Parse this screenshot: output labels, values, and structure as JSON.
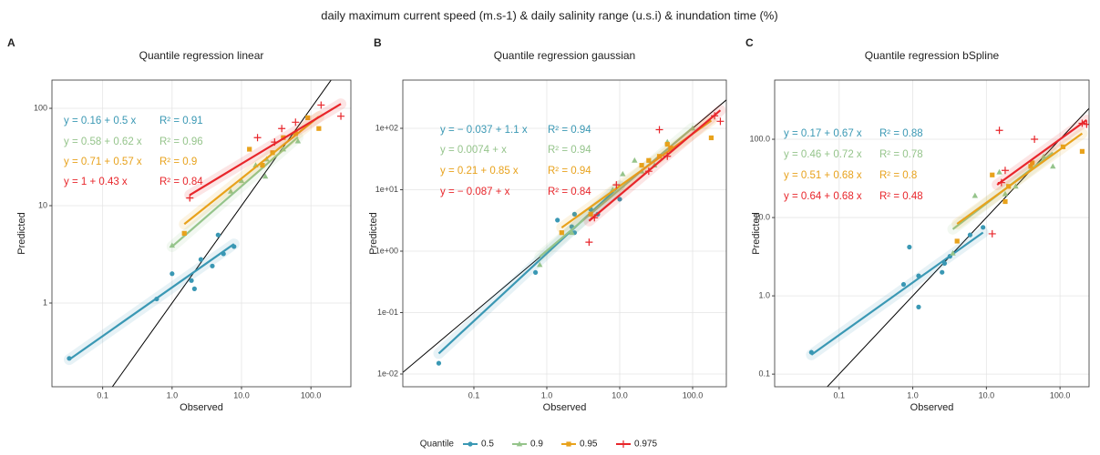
{
  "title": "daily maximum current speed (m.s-1) & daily salinity range (u.s.i) & inundation time (%)",
  "legend": {
    "title": "Quantile",
    "items": [
      {
        "name": "0.5",
        "color": "#3a98b4",
        "marker": "circle"
      },
      {
        "name": "0.9",
        "color": "#95c48b",
        "marker": "triangle"
      },
      {
        "name": "0.95",
        "color": "#e8a21c",
        "marker": "square"
      },
      {
        "name": "0.975",
        "color": "#e8262b",
        "marker": "plus"
      }
    ]
  },
  "chart_data": [
    {
      "type": "scatter",
      "panel": "A",
      "title": "Quantile regression linear",
      "xlabel": "Observed",
      "ylabel": "Predicted",
      "xscale": "log",
      "yscale": "log",
      "grid": true,
      "identity_line": true,
      "xlim": [
        0.0186,
        376
      ],
      "ylim": [
        0.138,
        195
      ],
      "xticks": [
        0.1,
        {
          "value": 1,
          "label": "1.0"
        },
        {
          "value": 10,
          "label": "10.0"
        },
        {
          "value": 100,
          "label": "100.0"
        }
      ],
      "yticks": [
        1,
        10,
        100
      ],
      "series": [
        {
          "color": "#3a98b4",
          "marker": "circle",
          "x": [
            0.033,
            0.6,
            1.0,
            1.9,
            2.1,
            2.6,
            3.8,
            4.6,
            5.5,
            7.8
          ],
          "y": [
            0.27,
            1.1,
            2.0,
            1.7,
            1.4,
            2.8,
            2.4,
            5.0,
            3.2,
            3.8
          ],
          "equation": "y = 0.16 + 0.5 x",
          "r2_label": "R² = 0.91",
          "intercept": 0.16,
          "slope": 0.5,
          "fit_x": [
            0.033,
            7.8
          ]
        },
        {
          "color": "#95c48b",
          "marker": "triangle",
          "x": [
            1.0,
            7,
            10,
            16,
            22,
            23,
            40,
            65
          ],
          "y": [
            3.9,
            14,
            18,
            26,
            20,
            30,
            38,
            46
          ],
          "equation": "y = 0.58 + 0.62 x",
          "r2_label": "R² = 0.96",
          "intercept": 0.58,
          "slope": 0.62,
          "fit_x": [
            1.0,
            65
          ]
        },
        {
          "color": "#e8a21c",
          "marker": "square",
          "x": [
            1.5,
            13,
            20,
            28,
            40,
            60,
            90,
            130
          ],
          "y": [
            5.2,
            38,
            26,
            35,
            50,
            55,
            80,
            62
          ],
          "equation": "y = 0.71 + 0.57 x",
          "r2_label": "R² = 0.9",
          "intercept": 0.71,
          "slope": 0.57,
          "fit_x": [
            1.5,
            130
          ]
        },
        {
          "color": "#e8262b",
          "marker": "plus",
          "x": [
            1.8,
            17,
            30,
            38,
            60,
            140,
            270
          ],
          "y": [
            12,
            50,
            45,
            62,
            72,
            108,
            83
          ],
          "equation": "y = 1 + 0.43 x",
          "r2_label": "R² = 0.84",
          "intercept": 1,
          "slope": 0.43,
          "fit_x": [
            1.8,
            270
          ]
        }
      ]
    },
    {
      "type": "scatter",
      "panel": "B",
      "title": "Quantile regression gaussian",
      "xlabel": "Observed",
      "ylabel": "Predicted",
      "xscale": "log",
      "yscale": "log",
      "grid": true,
      "identity_line": true,
      "xlim": [
        0.0106,
        290
      ],
      "ylim": [
        0.0062,
        610
      ],
      "xticks": [
        0.1,
        {
          "value": 1,
          "label": "1.0"
        },
        {
          "value": 10,
          "label": "10.0"
        },
        {
          "value": 100,
          "label": "100.0"
        }
      ],
      "yticks": [
        {
          "value": 0.01,
          "label": "1e-02"
        },
        {
          "value": 0.1,
          "label": "1e-01"
        },
        {
          "value": 1,
          "label": "1e+00"
        },
        {
          "value": 10,
          "label": "1e+01"
        },
        {
          "value": 100,
          "label": "1e+02"
        }
      ],
      "series": [
        {
          "color": "#3a98b4",
          "marker": "circle",
          "x": [
            0.033,
            0.7,
            1.4,
            2.2,
            2.4,
            2.4,
            4,
            5,
            10
          ],
          "y": [
            0.015,
            0.45,
            3.2,
            2.5,
            4.0,
            2.0,
            4.8,
            4,
            7
          ],
          "equation": "y = − 0.037 + 1.1 x",
          "r2_label": "R² = 0.94",
          "intercept": -0.037,
          "slope": 1.1,
          "fit_x": [
            0.033,
            10
          ]
        },
        {
          "color": "#95c48b",
          "marker": "triangle",
          "x": [
            0.8,
            2.2,
            8,
            11,
            16,
            20,
            30,
            45,
            100
          ],
          "y": [
            0.6,
            2.0,
            10,
            18,
            30,
            20,
            25,
            60,
            100
          ],
          "equation": "y = 0.0074 + x",
          "r2_label": "R² = 0.94",
          "intercept": 0.0074,
          "slope": 1,
          "fit_x": [
            0.8,
            100
          ]
        },
        {
          "color": "#e8a21c",
          "marker": "square",
          "x": [
            1.6,
            4,
            20,
            25,
            35,
            45,
            50,
            180
          ],
          "y": [
            2,
            4,
            25,
            30,
            35,
            55,
            48,
            70
          ],
          "equation": "y = 0.21 + 0.85 x",
          "r2_label": "R² = 0.94",
          "intercept": 0.21,
          "slope": 0.85,
          "fit_x": [
            1.6,
            180
          ]
        },
        {
          "color": "#e8262b",
          "marker": "plus",
          "x": [
            3.8,
            4.5,
            9,
            25,
            35,
            45,
            200,
            240
          ],
          "y": [
            1.4,
            3.5,
            12,
            20,
            95,
            35,
            160,
            130
          ],
          "equation": "y = − 0.087 + x",
          "r2_label": "R² = 0.84",
          "intercept": -0.087,
          "slope": 1,
          "fit_x": [
            3.8,
            240
          ]
        }
      ]
    },
    {
      "type": "scatter",
      "panel": "C",
      "title": "Quantile regression bSpline",
      "xlabel": "Observed",
      "ylabel": "Predicted",
      "xscale": "log",
      "yscale": "log",
      "grid": true,
      "identity_line": true,
      "xlim": [
        0.0133,
        248
      ],
      "ylim": [
        0.069,
        570
      ],
      "xticks": [
        0.1,
        {
          "value": 1,
          "label": "1.0"
        },
        {
          "value": 10,
          "label": "10.0"
        },
        {
          "value": 100,
          "label": "100.0"
        }
      ],
      "yticks": [
        0.1,
        {
          "value": 1,
          "label": "1.0"
        },
        {
          "value": 10,
          "label": "10.0"
        },
        {
          "value": 100,
          "label": "100.0"
        }
      ],
      "series": [
        {
          "color": "#3a98b4",
          "marker": "circle",
          "x": [
            0.042,
            0.75,
            0.9,
            1.2,
            1.2,
            2.5,
            2.7,
            3.2,
            6,
            9
          ],
          "y": [
            0.19,
            1.4,
            4.2,
            0.72,
            1.8,
            2.0,
            2.6,
            3.2,
            6,
            7.5
          ],
          "equation": "y = 0.17 + 0.67 x",
          "r2_label": "R² = 0.88",
          "intercept": 0.17,
          "slope": 0.67,
          "fit_x": [
            0.042,
            9
          ]
        },
        {
          "color": "#95c48b",
          "marker": "triangle",
          "x": [
            3.5,
            7,
            15,
            18,
            25,
            60,
            80
          ],
          "y": [
            3.5,
            19,
            38,
            20,
            25,
            60,
            45
          ],
          "equation": "y = 0.46 + 0.72 x",
          "r2_label": "R² = 0.78",
          "intercept": 0.46,
          "slope": 0.72,
          "fit_x": [
            3.5,
            80
          ]
        },
        {
          "color": "#e8a21c",
          "marker": "square",
          "x": [
            4,
            12,
            18,
            20,
            40,
            42,
            110,
            200
          ],
          "y": [
            5,
            35,
            16,
            25,
            45,
            50,
            80,
            70
          ],
          "equation": "y = 0.51 + 0.68 x",
          "r2_label": "R² = 0.8",
          "intercept": 0.51,
          "slope": 0.68,
          "fit_x": [
            4,
            200
          ]
        },
        {
          "color": "#e8262b",
          "marker": "plus",
          "x": [
            12,
            15,
            16,
            18,
            45,
            200,
            230
          ],
          "y": [
            6.2,
            130,
            28,
            40,
            100,
            160,
            155
          ],
          "equation": "y = 0.64 + 0.68 x",
          "r2_label": "R² = 0.48",
          "intercept": 0.64,
          "slope": 0.68,
          "fit_x": [
            14,
            230
          ]
        }
      ]
    }
  ]
}
